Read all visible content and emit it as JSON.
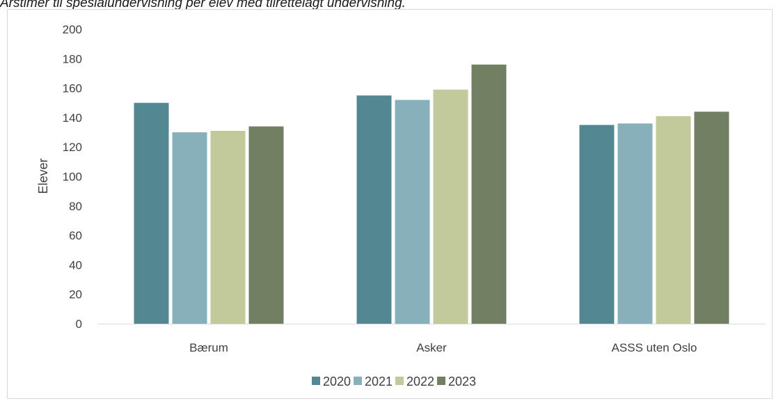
{
  "chart_data": {
    "type": "bar",
    "title": "Årstimer til spesialundervisning per elev med tilrettelagt undervisning.",
    "ylabel": "Elever",
    "xlabel": "",
    "ylim": [
      0,
      200
    ],
    "yticks": [
      0,
      20,
      40,
      60,
      80,
      100,
      120,
      140,
      160,
      180,
      200
    ],
    "grid": false,
    "legend_position": "bottom",
    "categories": [
      "Bærum",
      "Asker",
      "ASSS uten Oslo"
    ],
    "series": [
      {
        "name": "2020",
        "color": "#538791",
        "values": [
          150,
          155,
          135
        ]
      },
      {
        "name": "2021",
        "color": "#87b0ba",
        "values": [
          130,
          152,
          136
        ]
      },
      {
        "name": "2022",
        "color": "#c2c99a",
        "values": [
          131,
          159,
          141
        ]
      },
      {
        "name": "2023",
        "color": "#727f63",
        "values": [
          134,
          176,
          144
        ]
      }
    ]
  }
}
